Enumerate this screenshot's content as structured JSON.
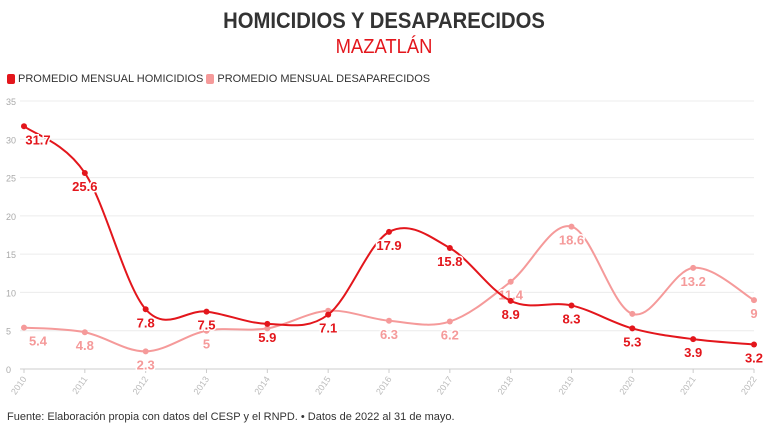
{
  "title": "HOMICIDIOS Y DESAPARECIDOS",
  "subtitle": "MAZATLÁN",
  "source": "Fuente: Elaboración propia con datos del CESP y el RNPD. • Datos de 2022 al 31 de mayo.",
  "chart_data": {
    "type": "line",
    "x": [
      "2010",
      "2011",
      "2012",
      "2013",
      "2014",
      "2015",
      "2016",
      "2017",
      "2018",
      "2019",
      "2020",
      "2021",
      "2022"
    ],
    "ylim": [
      0,
      35
    ],
    "yticks": [
      "0",
      "5",
      "10",
      "15",
      "20",
      "25",
      "30",
      "35"
    ],
    "grid": true,
    "legend": "top-left",
    "series": [
      {
        "name": "PROMEDIO MENSUAL HOMICIDIOS",
        "color": "#e3161c",
        "values": [
          31.7,
          25.6,
          7.8,
          7.5,
          5.9,
          7.1,
          17.9,
          15.8,
          8.9,
          8.3,
          5.3,
          3.9,
          3.2
        ],
        "labels": [
          "31.7",
          "25.6",
          "7.8",
          "7.5",
          "5.9",
          "7.1",
          "17.9",
          "15.8",
          "8.9",
          "8.3",
          "5.3",
          "3.9",
          "3.2"
        ]
      },
      {
        "name": "PROMEDIO MENSUAL DESAPARECIDOS",
        "color": "#f59a9a",
        "values": [
          5.4,
          4.8,
          2.3,
          5,
          5.3,
          7.6,
          6.3,
          6.2,
          11.4,
          18.6,
          7.2,
          13.2,
          9
        ],
        "labels": [
          "5.4",
          "4.8",
          "2.3",
          "5",
          null,
          null,
          "6.3",
          "6.2",
          "11.4",
          "18.6",
          null,
          "13.2",
          "9"
        ]
      }
    ]
  }
}
